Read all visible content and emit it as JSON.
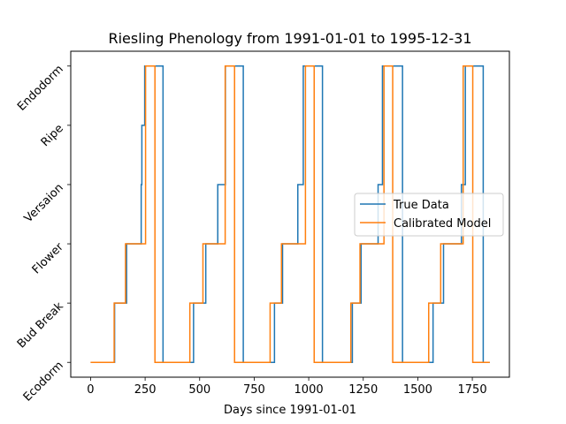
{
  "chart_data": {
    "type": "line",
    "step": true,
    "title": "Riesling Phenology from 1991-01-01 to 1995-12-31",
    "xlabel": "Days since 1991-01-01",
    "ylabel": "",
    "xlim": [
      -91,
      1920
    ],
    "ylim": [
      -0.25,
      5.25
    ],
    "xticks": [
      0,
      250,
      500,
      750,
      1000,
      1250,
      1500,
      1750
    ],
    "yticks": [
      0,
      1,
      2,
      3,
      4,
      5
    ],
    "ytick_labels": [
      "Ecodorm",
      "Bud Break",
      "Flower",
      "Version",
      "Ripe",
      "Endodorm"
    ],
    "ytick_labels_display": [
      "Ecodorm",
      "Bud Break",
      "Flower",
      "Versaion",
      "Ripe",
      "Endodorm"
    ],
    "legend_position": "center-right",
    "colors": {
      "true_data": "#1f77b4",
      "calibrated": "#ff7f0e"
    },
    "series": [
      {
        "name": "True Data",
        "color": "#1f77b4",
        "points": [
          [
            0,
            0
          ],
          [
            110,
            1
          ],
          [
            165,
            2
          ],
          [
            232,
            3
          ],
          [
            235,
            4
          ],
          [
            248,
            5
          ],
          [
            332,
            0
          ],
          [
            472,
            1
          ],
          [
            528,
            2
          ],
          [
            583,
            3
          ],
          [
            618,
            5
          ],
          [
            700,
            0
          ],
          [
            843,
            1
          ],
          [
            880,
            2
          ],
          [
            950,
            3
          ],
          [
            975,
            5
          ],
          [
            1063,
            0
          ],
          [
            1200,
            1
          ],
          [
            1240,
            2
          ],
          [
            1318,
            3
          ],
          [
            1338,
            5
          ],
          [
            1430,
            0
          ],
          [
            1570,
            1
          ],
          [
            1618,
            2
          ],
          [
            1700,
            3
          ],
          [
            1718,
            5
          ],
          [
            1800,
            0
          ],
          [
            1830,
            0
          ]
        ]
      },
      {
        "name": "Calibrated Model",
        "color": "#ff7f0e",
        "points": [
          [
            0,
            0
          ],
          [
            108,
            1
          ],
          [
            160,
            2
          ],
          [
            225,
            2
          ],
          [
            252,
            5
          ],
          [
            295,
            0
          ],
          [
            455,
            1
          ],
          [
            515,
            2
          ],
          [
            565,
            2
          ],
          [
            617,
            5
          ],
          [
            660,
            0
          ],
          [
            823,
            1
          ],
          [
            875,
            2
          ],
          [
            950,
            2
          ],
          [
            985,
            5
          ],
          [
            1025,
            0
          ],
          [
            1193,
            1
          ],
          [
            1235,
            2
          ],
          [
            1315,
            2
          ],
          [
            1345,
            5
          ],
          [
            1385,
            0
          ],
          [
            1550,
            1
          ],
          [
            1605,
            2
          ],
          [
            1690,
            2
          ],
          [
            1708,
            5
          ],
          [
            1752,
            0
          ],
          [
            1830,
            0
          ]
        ]
      }
    ]
  }
}
